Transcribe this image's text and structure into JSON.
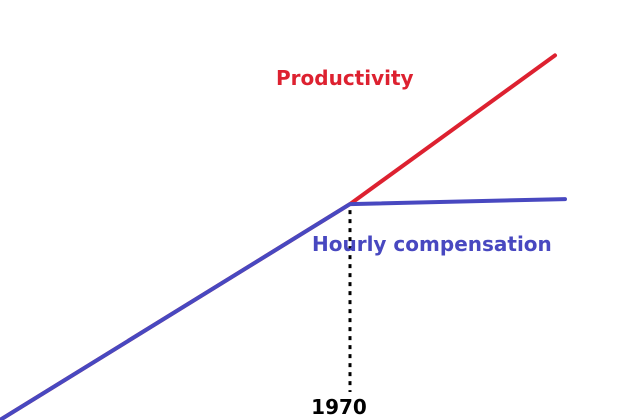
{
  "chart_data": {
    "type": "line",
    "title": "",
    "xlabel": "",
    "ylabel": "",
    "xlim": [
      1900,
      2020
    ],
    "ylim": [
      0,
      100
    ],
    "grid": false,
    "legend": "none",
    "ticks": [
      {
        "x": 1970,
        "label": "1970"
      }
    ],
    "series": [
      {
        "name": "Productivity",
        "color": "#dd2130",
        "points": [
          [
            1900,
            0
          ],
          [
            1970,
            51.4
          ],
          [
            2011,
            86.8
          ]
        ]
      },
      {
        "name": "Hourly compensation",
        "color": "#4848c0",
        "points": [
          [
            1900,
            0
          ],
          [
            1970,
            51.4
          ],
          [
            2013,
            52.6
          ]
        ]
      }
    ],
    "annotations": [
      {
        "type": "dotted-vertical-line",
        "x": 1970,
        "from_y": 0,
        "to_y": 51.4,
        "color": "#000000"
      }
    ]
  }
}
